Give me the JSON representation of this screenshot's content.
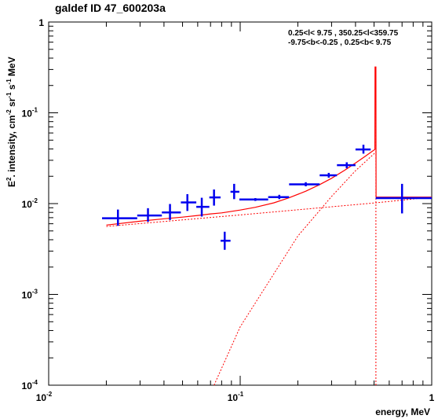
{
  "chart_data": {
    "type": "scatter",
    "title": "galdef ID 47_600203a",
    "xlabel": "energy, MeV",
    "ylabel_parts": [
      "E",
      "2",
      ". intensity, cm",
      "-2",
      " sr",
      "-1",
      " s",
      "-1",
      " MeV"
    ],
    "region_text": [
      "0.25<l< 9.75 , 350.25<l<359.75",
      "-9.75<b<-0.25 ,  0.25<b< 9.75"
    ],
    "x_scale": "log",
    "y_scale": "log",
    "xlim": [
      0.01,
      1
    ],
    "ylim": [
      0.0001,
      1
    ],
    "x_ticks": [
      {
        "value": 0.01,
        "base": "10",
        "exp": "-2"
      },
      {
        "value": 0.1,
        "base": "10",
        "exp": "-1"
      },
      {
        "value": 1,
        "base": "1",
        "exp": ""
      }
    ],
    "y_ticks": [
      {
        "value": 0.0001,
        "base": "10",
        "exp": "-4"
      },
      {
        "value": 0.001,
        "base": "10",
        "exp": "-3"
      },
      {
        "value": 0.01,
        "base": "10",
        "exp": "-2"
      },
      {
        "value": 0.1,
        "base": "10",
        "exp": "-1"
      },
      {
        "value": 1,
        "base": "1",
        "exp": ""
      }
    ],
    "data_points": [
      {
        "x": 0.023,
        "y": 0.0069,
        "xlo": 0.019,
        "xhi": 0.029,
        "ylo": 0.0057,
        "yhi": 0.0086
      },
      {
        "x": 0.033,
        "y": 0.0074,
        "xlo": 0.029,
        "xhi": 0.039,
        "ylo": 0.0063,
        "yhi": 0.0089
      },
      {
        "x": 0.043,
        "y": 0.008,
        "xlo": 0.039,
        "xhi": 0.049,
        "ylo": 0.0066,
        "yhi": 0.0099
      },
      {
        "x": 0.053,
        "y": 0.0103,
        "xlo": 0.049,
        "xhi": 0.059,
        "ylo": 0.0083,
        "yhi": 0.0127
      },
      {
        "x": 0.063,
        "y": 0.0092,
        "xlo": 0.059,
        "xhi": 0.069,
        "ylo": 0.0072,
        "yhi": 0.0116
      },
      {
        "x": 0.073,
        "y": 0.0117,
        "xlo": 0.069,
        "xhi": 0.079,
        "ylo": 0.0095,
        "yhi": 0.0143
      },
      {
        "x": 0.083,
        "y": 0.0039,
        "xlo": 0.079,
        "xhi": 0.089,
        "ylo": 0.0031,
        "yhi": 0.0049
      },
      {
        "x": 0.093,
        "y": 0.0135,
        "xlo": 0.089,
        "xhi": 0.099,
        "ylo": 0.0112,
        "yhi": 0.0165
      },
      {
        "x": 0.12,
        "y": 0.0111,
        "xlo": 0.099,
        "xhi": 0.14,
        "ylo": 0.0107,
        "yhi": 0.0115
      },
      {
        "x": 0.16,
        "y": 0.0118,
        "xlo": 0.14,
        "xhi": 0.18,
        "ylo": 0.0112,
        "yhi": 0.0125
      },
      {
        "x": 0.22,
        "y": 0.0163,
        "xlo": 0.18,
        "xhi": 0.26,
        "ylo": 0.0155,
        "yhi": 0.0172
      },
      {
        "x": 0.29,
        "y": 0.0205,
        "xlo": 0.26,
        "xhi": 0.32,
        "ylo": 0.0193,
        "yhi": 0.0218
      },
      {
        "x": 0.36,
        "y": 0.0265,
        "xlo": 0.32,
        "xhi": 0.4,
        "ylo": 0.0245,
        "yhi": 0.0285
      },
      {
        "x": 0.44,
        "y": 0.0395,
        "xlo": 0.4,
        "xhi": 0.48,
        "ylo": 0.0355,
        "yhi": 0.0445
      },
      {
        "x": 0.7,
        "y": 0.0115,
        "xlo": 0.51,
        "xhi": 1.0,
        "ylo": 0.0078,
        "yhi": 0.0165
      }
    ],
    "series": [
      {
        "role": "total",
        "style": "solid",
        "points": [
          [
            0.02,
            0.0058
          ],
          [
            0.03,
            0.0064
          ],
          [
            0.04,
            0.0068
          ],
          [
            0.05,
            0.0071
          ],
          [
            0.06,
            0.0074
          ],
          [
            0.07,
            0.0077
          ],
          [
            0.08,
            0.0079
          ],
          [
            0.1,
            0.0085
          ],
          [
            0.12,
            0.0091
          ],
          [
            0.15,
            0.0102
          ],
          [
            0.18,
            0.0116
          ],
          [
            0.22,
            0.0137
          ],
          [
            0.26,
            0.0162
          ],
          [
            0.3,
            0.019
          ],
          [
            0.35,
            0.0232
          ],
          [
            0.4,
            0.028
          ],
          [
            0.45,
            0.0332
          ],
          [
            0.48,
            0.0366
          ],
          [
            0.505,
            0.0395
          ],
          [
            0.506,
            0.32
          ],
          [
            0.511,
            0.32
          ],
          [
            0.512,
            0.0118
          ],
          [
            1.0,
            0.0118
          ]
        ]
      },
      {
        "role": "component-1",
        "style": "dotted",
        "points": [
          [
            0.02,
            0.0056
          ],
          [
            0.1,
            0.0075
          ],
          [
            0.511,
            0.0102
          ],
          [
            1.0,
            0.0118
          ]
        ]
      },
      {
        "role": "component-2",
        "style": "dotted",
        "points": [
          [
            0.073,
            0.0001
          ],
          [
            0.1,
            0.00044
          ],
          [
            0.2,
            0.0044
          ],
          [
            0.3,
            0.012
          ],
          [
            0.4,
            0.023
          ],
          [
            0.511,
            0.037
          ]
        ]
      },
      {
        "role": "line-marker",
        "style": "dotted",
        "points": [
          [
            0.511,
            0.0001
          ],
          [
            0.511,
            0.32
          ]
        ]
      }
    ],
    "grid": false,
    "legend": "none"
  }
}
